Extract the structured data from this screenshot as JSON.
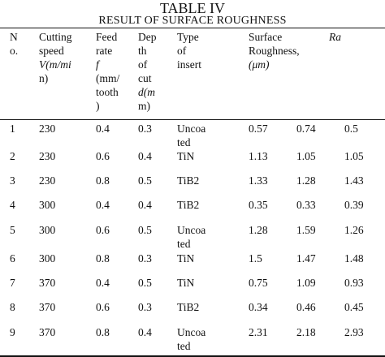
{
  "table": {
    "title": "TABLE IV",
    "subtitle": "RESULT OF SURFACE ROUGHNESS",
    "headers": {
      "no": [
        "N",
        "o."
      ],
      "speed": [
        "Cutting",
        "speed",
        "V(m/mi",
        "n)"
      ],
      "feed": [
        "Feed",
        "rate",
        "f",
        "(mm/",
        "tooth",
        ")"
      ],
      "depth": [
        "Dep",
        "th",
        "of",
        "cut",
        "d(m",
        "m)"
      ],
      "insert": [
        "Type",
        "of",
        "insert"
      ],
      "roughness": [
        "Surface",
        "Roughness,",
        "(μm)"
      ],
      "ra": [
        "Ra"
      ]
    },
    "rows": [
      {
        "no": "1",
        "speed": "230",
        "feed": "0.4",
        "depth": "0.3",
        "insert": [
          "Uncoa",
          "ted"
        ],
        "r1": "0.57",
        "r2": "0.74",
        "ra": "0.5"
      },
      {
        "no": "2",
        "speed": "230",
        "feed": "0.6",
        "depth": "0.4",
        "insert": [
          "TiN"
        ],
        "r1": "1.13",
        "r2": "1.05",
        "ra": "1.05"
      },
      {
        "no": "3",
        "speed": "230",
        "feed": "0.8",
        "depth": "0.5",
        "insert": [
          "TiB2"
        ],
        "r1": "1.33",
        "r2": "1.28",
        "ra": "1.43"
      },
      {
        "no": "4",
        "speed": "300",
        "feed": "0.4",
        "depth": "0.4",
        "insert": [
          "TiB2"
        ],
        "r1": "0.35",
        "r2": "0.33",
        "ra": "0.39"
      },
      {
        "no": "5",
        "speed": "300",
        "feed": "0.6",
        "depth": "0.5",
        "insert": [
          "Uncoa",
          "ted"
        ],
        "r1": "1.28",
        "r2": "1.59",
        "ra": "1.26"
      },
      {
        "no": "6",
        "speed": "300",
        "feed": "0.8",
        "depth": "0.3",
        "insert": [
          "TiN"
        ],
        "r1": "1.5",
        "r2": "1.47",
        "ra": "1.48"
      },
      {
        "no": "7",
        "speed": "370",
        "feed": "0.4",
        "depth": "0.5",
        "insert": [
          "TiN"
        ],
        "r1": "0.75",
        "r2": "1.09",
        "ra": "0.93"
      },
      {
        "no": "8",
        "speed": "370",
        "feed": "0.6",
        "depth": "0.3",
        "insert": [
          "TiB2"
        ],
        "r1": "0.34",
        "r2": "0.46",
        "ra": "0.45"
      },
      {
        "no": "9",
        "speed": "370",
        "feed": "0.8",
        "depth": "0.4",
        "insert": [
          "Uncoa",
          "ted"
        ],
        "r1": "2.31",
        "r2": "2.18",
        "ra": "2.93"
      }
    ]
  }
}
